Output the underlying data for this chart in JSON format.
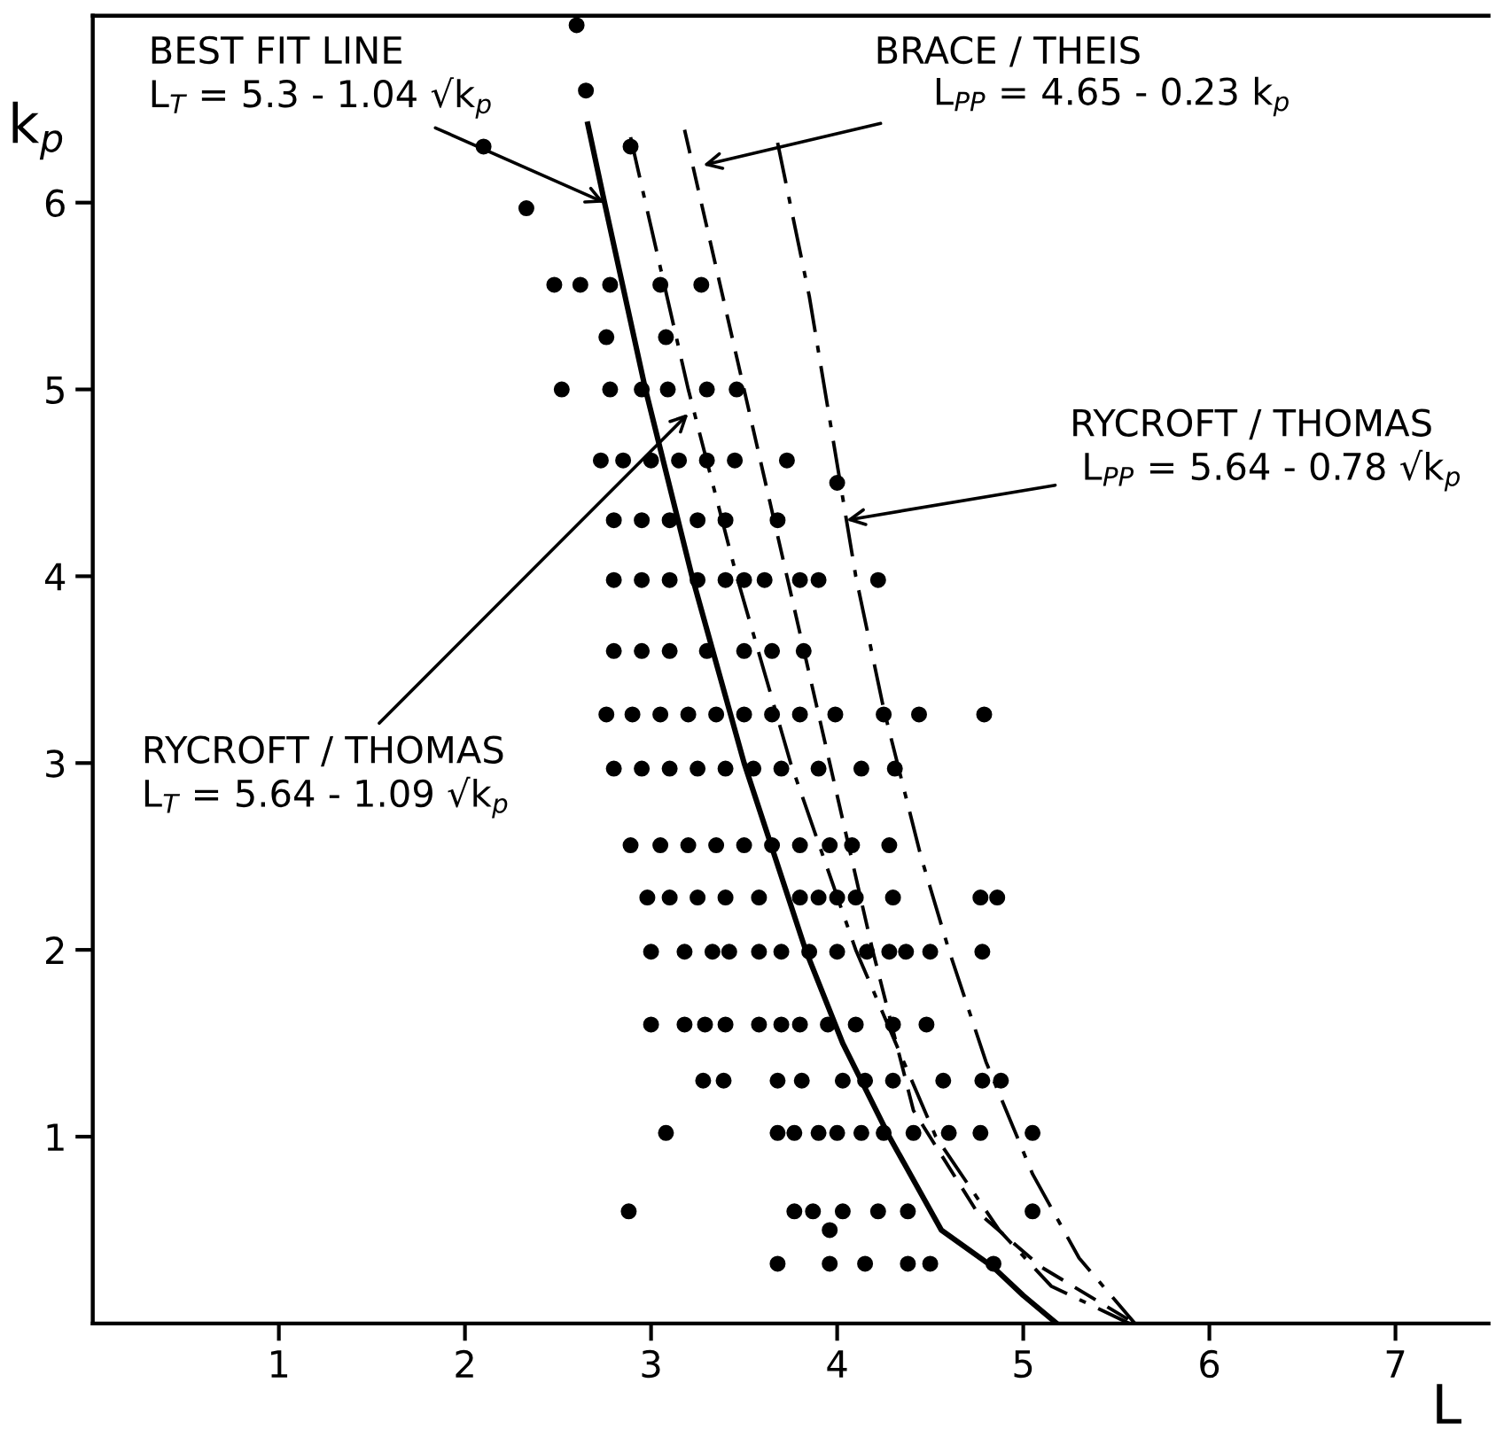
{
  "chart_data": {
    "type": "line",
    "xlabel": "L",
    "ylabel": "k$_{p}$",
    "xlim": [
      0,
      7.5
    ],
    "xticks": [
      1,
      2,
      3,
      4,
      5,
      6,
      7
    ],
    "ylim": [
      0,
      7
    ],
    "yticks": [
      1,
      2,
      3,
      4,
      5,
      6
    ],
    "series": [
      {
        "color": "#000000",
        "line_style": "solid",
        "x": [
          2.66,
          2.75,
          2.97,
          3.22,
          3.5,
          3.83,
          4.03,
          4.28,
          4.56,
          4.84,
          5.0,
          5.18
        ],
        "values": [
          6.42,
          6.0,
          5.0,
          4.0,
          3.0,
          2.0,
          1.5,
          1.0,
          0.5,
          0.3,
          0.15,
          0
        ]
      },
      {
        "color": "#000000",
        "line_style": "dashdot",
        "x": [
          2.89,
          2.97,
          3.2,
          3.46,
          3.75,
          4.1,
          4.53,
          4.87,
          5.15,
          5.57
        ],
        "values": [
          6.35,
          6.0,
          5.0,
          4.0,
          3.0,
          2.0,
          1.0,
          0.5,
          0.2,
          0
        ]
      },
      {
        "color": "#000000",
        "line_style": "dashed",
        "x": [
          3.18,
          3.73,
          3.96,
          4.19,
          4.41,
          4.75,
          5.1,
          5.6
        ],
        "values": [
          6.39,
          4.0,
          3.0,
          2.0,
          1.14,
          0.6,
          0.3,
          0
        ]
      },
      {
        "color": "#000000",
        "line_style": "dashdot",
        "x": [
          3.68,
          3.85,
          4.1,
          4.25,
          4.45,
          4.6,
          4.8,
          5.05,
          5.3,
          5.6
        ],
        "values": [
          6.32,
          5.5,
          4.0,
          3.29,
          2.5,
          2.0,
          1.4,
          0.8,
          0.35,
          0
        ]
      },
      {
        "type": "scatter",
        "color": "#000000",
        "marker": "circle",
        "x": [
          2.6,
          2.65,
          2.1,
          2.89,
          2.33,
          2.48,
          2.62,
          2.78,
          3.05,
          3.27,
          2.76,
          3.08,
          2.52,
          2.78,
          2.95,
          3.09,
          3.3,
          3.46,
          2.73,
          2.85,
          3.0,
          3.15,
          3.3,
          3.45,
          3.73,
          4.0,
          2.8,
          2.95,
          3.1,
          3.25,
          3.4,
          3.68,
          2.8,
          2.95,
          3.1,
          3.25,
          3.4,
          3.5,
          3.61,
          3.8,
          3.9,
          4.22,
          2.8,
          2.95,
          3.1,
          3.3,
          3.5,
          3.65,
          3.82,
          2.76,
          2.9,
          3.05,
          3.2,
          3.35,
          3.5,
          3.65,
          3.8,
          3.99,
          4.25,
          4.44,
          4.79,
          2.8,
          2.95,
          3.1,
          3.25,
          3.4,
          3.55,
          3.7,
          3.9,
          4.13,
          4.31,
          2.89,
          3.05,
          3.2,
          3.35,
          3.5,
          3.65,
          3.8,
          3.96,
          4.08,
          4.28,
          2.98,
          3.1,
          3.25,
          3.4,
          3.58,
          3.8,
          3.9,
          4.0,
          4.1,
          4.3,
          4.77,
          4.86,
          3.0,
          3.18,
          3.33,
          3.42,
          3.58,
          3.7,
          3.85,
          4.0,
          4.16,
          4.28,
          4.37,
          4.5,
          4.78,
          3.0,
          3.18,
          3.29,
          3.4,
          3.58,
          3.7,
          3.8,
          3.95,
          4.1,
          4.3,
          4.48,
          3.28,
          3.39,
          3.68,
          3.81,
          4.03,
          4.15,
          4.3,
          4.57,
          4.78,
          4.88,
          3.08,
          3.68,
          3.77,
          3.9,
          4.0,
          4.13,
          4.25,
          4.41,
          4.6,
          4.77,
          5.05,
          2.88,
          3.77,
          3.87,
          4.03,
          4.22,
          4.38,
          5.05,
          3.96,
          3.68,
          3.96,
          4.15,
          4.38,
          4.5,
          4.84
        ],
        "values": [
          6.95,
          6.6,
          6.3,
          6.3,
          5.97,
          5.56,
          5.56,
          5.56,
          5.56,
          5.56,
          5.28,
          5.28,
          5.0,
          5.0,
          5.0,
          5.0,
          5.0,
          5.0,
          4.62,
          4.62,
          4.62,
          4.62,
          4.62,
          4.62,
          4.62,
          4.5,
          4.3,
          4.3,
          4.3,
          4.3,
          4.3,
          4.3,
          3.98,
          3.98,
          3.98,
          3.98,
          3.98,
          3.98,
          3.98,
          3.98,
          3.98,
          3.98,
          3.6,
          3.6,
          3.6,
          3.6,
          3.6,
          3.6,
          3.6,
          3.26,
          3.26,
          3.26,
          3.26,
          3.26,
          3.26,
          3.26,
          3.26,
          3.26,
          3.26,
          3.26,
          3.26,
          2.97,
          2.97,
          2.97,
          2.97,
          2.97,
          2.97,
          2.97,
          2.97,
          2.97,
          2.97,
          2.56,
          2.56,
          2.56,
          2.56,
          2.56,
          2.56,
          2.56,
          2.56,
          2.56,
          2.56,
          2.28,
          2.28,
          2.28,
          2.28,
          2.28,
          2.28,
          2.28,
          2.28,
          2.28,
          2.28,
          2.28,
          2.28,
          1.99,
          1.99,
          1.99,
          1.99,
          1.99,
          1.99,
          1.99,
          1.99,
          1.99,
          1.99,
          1.99,
          1.99,
          1.99,
          1.6,
          1.6,
          1.6,
          1.6,
          1.6,
          1.6,
          1.6,
          1.6,
          1.6,
          1.6,
          1.6,
          1.3,
          1.3,
          1.3,
          1.3,
          1.3,
          1.3,
          1.3,
          1.3,
          1.3,
          1.3,
          1.02,
          1.02,
          1.02,
          1.02,
          1.02,
          1.02,
          1.02,
          1.02,
          1.02,
          1.02,
          1.02,
          0.6,
          0.6,
          0.6,
          0.6,
          0.6,
          0.6,
          0.6,
          0.5,
          0.32,
          0.32,
          0.32,
          0.32,
          0.32,
          0.32
        ]
      }
    ],
    "annotations": [
      {
        "text": "BEST FIT LINE\nL$_{T}$ = 5.3 - 1.04 √k$_{p}$",
        "x": 2.75,
        "y": 6.0
      },
      {
        "text": "BRACE / THEIS\n     L$_{PP}$ = 4.65 - 0.23 k$_{p}$",
        "x": 3.28,
        "y": 6.2
      },
      {
        "text": "RYCROFT / THOMAS\n L$_{PP}$ = 5.64 - 0.78 √k$_{p}$",
        "x": 4.05,
        "y": 4.3
      },
      {
        "text": "RYCROFT / THOMAS\nL$_{T}$ = 5.64 - 1.09 √k$_{p}$",
        "x": 3.2,
        "y": 4.87
      }
    ]
  }
}
